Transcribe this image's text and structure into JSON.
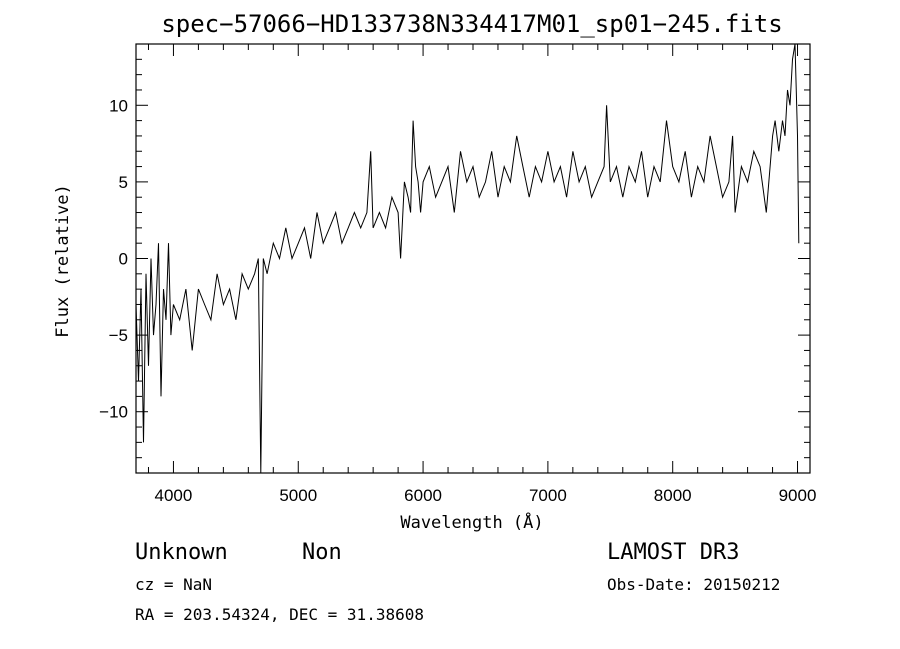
{
  "chart_data": {
    "type": "line",
    "title": "spec−57066−HD133738N334417M01_sp01−245.fits",
    "xlabel": "Wavelength (Å)",
    "ylabel": "Flux (relative)",
    "xlim": [
      3700,
      9100
    ],
    "ylim": [
      -14,
      14
    ],
    "xticks": [
      4000,
      5000,
      6000,
      7000,
      8000,
      9000
    ],
    "xtick_labels": [
      "4000",
      "5000",
      "6000",
      "7000",
      "8000",
      "9000"
    ],
    "yticks": [
      -10,
      -5,
      0,
      5,
      10
    ],
    "ytick_labels": [
      "−10",
      "−5",
      "0",
      "5",
      "10"
    ],
    "grid": false,
    "series": [
      {
        "x": [
          3700,
          3720,
          3740,
          3760,
          3780,
          3800,
          3820,
          3840,
          3860,
          3880,
          3900,
          3920,
          3940,
          3960,
          3980,
          4000,
          4050,
          4100,
          4150,
          4200,
          4250,
          4300,
          4350,
          4400,
          4450,
          4500,
          4550,
          4600,
          4650,
          4680,
          4700,
          4720,
          4750,
          4800,
          4850,
          4900,
          4950,
          5000,
          5050,
          5100,
          5150,
          5200,
          5250,
          5300,
          5350,
          5400,
          5450,
          5500,
          5550,
          5580,
          5600,
          5650,
          5700,
          5750,
          5800,
          5820,
          5850,
          5880,
          5900,
          5920,
          5940,
          5960,
          5980,
          6000,
          6050,
          6100,
          6150,
          6200,
          6250,
          6300,
          6350,
          6400,
          6450,
          6500,
          6550,
          6600,
          6650,
          6700,
          6750,
          6800,
          6850,
          6900,
          6950,
          7000,
          7050,
          7100,
          7150,
          7200,
          7250,
          7300,
          7350,
          7400,
          7450,
          7470,
          7500,
          7550,
          7600,
          7650,
          7700,
          7750,
          7800,
          7850,
          7900,
          7950,
          8000,
          8050,
          8100,
          8150,
          8200,
          8250,
          8300,
          8350,
          8400,
          8450,
          8480,
          8500,
          8550,
          8600,
          8650,
          8700,
          8750,
          8780,
          8800,
          8820,
          8850,
          8880,
          8900,
          8920,
          8940,
          8960,
          8980,
          9000,
          9010
        ],
        "y": [
          -3,
          -8,
          -2,
          -12,
          -1,
          -7,
          0,
          -5,
          -3,
          1,
          -9,
          -2,
          -4,
          1,
          -5,
          -3,
          -4,
          -2,
          -6,
          -2,
          -3,
          -4,
          -1,
          -3,
          -2,
          -4,
          -1,
          -2,
          -1,
          0,
          -14,
          0,
          -1,
          1,
          0,
          2,
          0,
          1,
          2,
          0,
          3,
          1,
          2,
          3,
          1,
          2,
          3,
          2,
          3,
          7,
          2,
          3,
          2,
          4,
          3,
          0,
          5,
          4,
          3,
          9,
          6,
          5,
          3,
          5,
          6,
          4,
          5,
          6,
          3,
          7,
          5,
          6,
          4,
          5,
          7,
          4,
          6,
          5,
          8,
          6,
          4,
          6,
          5,
          7,
          5,
          6,
          4,
          7,
          5,
          6,
          4,
          5,
          6,
          10,
          5,
          6,
          4,
          6,
          5,
          7,
          4,
          6,
          5,
          9,
          6,
          5,
          7,
          4,
          6,
          5,
          8,
          6,
          4,
          5,
          8,
          3,
          6,
          5,
          7,
          6,
          3,
          6,
          8,
          9,
          7,
          9,
          8,
          11,
          10,
          13,
          14,
          8,
          1
        ]
      }
    ]
  },
  "info": {
    "object_class": "Unknown",
    "subclass": "Non",
    "survey": "LAMOST DR3",
    "cz": "cz = NaN",
    "obs_date": "Obs-Date: 20150212",
    "coords": "RA = 203.54324, DEC =  31.38608"
  }
}
